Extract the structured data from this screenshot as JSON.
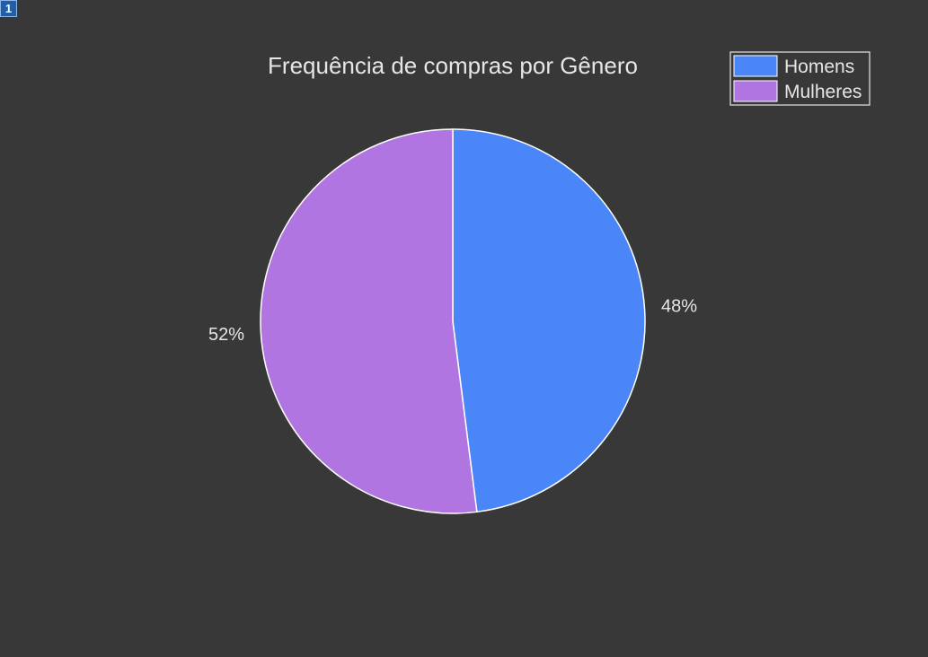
{
  "page_badge": "1",
  "chart_data": {
    "type": "pie",
    "title": "Frequência de compras por Gênero",
    "categories": [
      "Homens",
      "Mulheres"
    ],
    "values": [
      48,
      52
    ],
    "labels": [
      "48%",
      "52%"
    ],
    "colors": [
      "#4a86f7",
      "#b075e0"
    ],
    "legend": {
      "placement": "top-right",
      "entries": [
        "Homens",
        "Mulheres"
      ]
    },
    "start_angle_direction": "clockwise from top",
    "background": "#383838",
    "text_color": "#e6e6e6",
    "slice_border_color": "#ffffff"
  }
}
